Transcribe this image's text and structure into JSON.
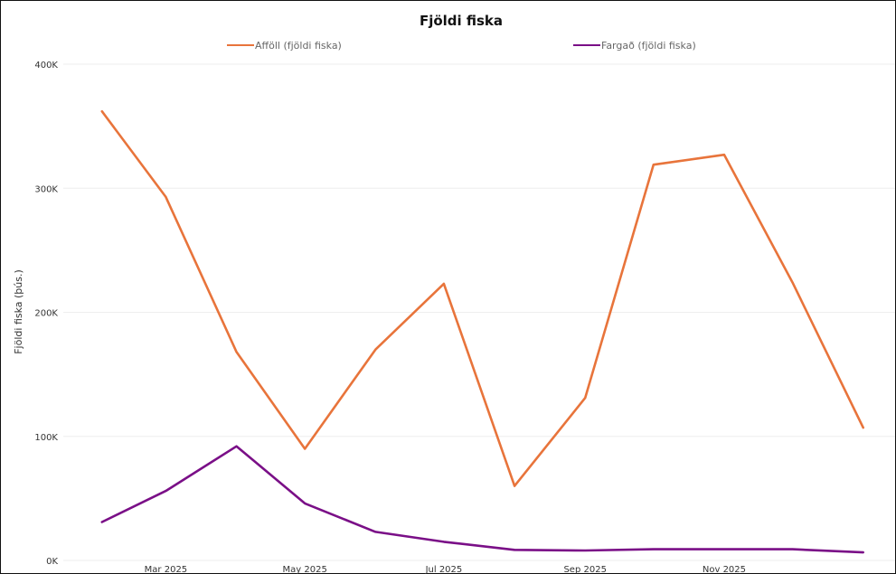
{
  "chart_data": {
    "type": "line",
    "title": "Fjöldi fiska",
    "xlabel": "",
    "ylabel": "Fjöldi fiska (þús.)",
    "x": [
      "2025-02-01",
      "2025-03-01",
      "2025-04-01",
      "2025-05-01",
      "2025-06-01",
      "2025-07-01",
      "2025-08-01",
      "2025-09-01",
      "2025-10-01",
      "2025-11-01",
      "2025-12-01",
      "2026-01-01"
    ],
    "x_ticks": [
      {
        "date": "2025-03-01",
        "label": "Mar 2025"
      },
      {
        "date": "2025-05-01",
        "label": "May 2025"
      },
      {
        "date": "2025-07-01",
        "label": "Jul 2025"
      },
      {
        "date": "2025-09-01",
        "label": "Sep 2025"
      },
      {
        "date": "2025-11-01",
        "label": "Nov 2025"
      }
    ],
    "y_ticks": [
      {
        "value": 0,
        "label": "0K"
      },
      {
        "value": 100000,
        "label": "100K"
      },
      {
        "value": 200000,
        "label": "200K"
      },
      {
        "value": 300000,
        "label": "300K"
      },
      {
        "value": 400000,
        "label": "400K"
      }
    ],
    "ylim": [
      0,
      400000
    ],
    "grid": true,
    "legend_position": "top",
    "series": [
      {
        "name": "Afföll (fjöldi fiska)",
        "color": "#e8743b",
        "values": [
          362000,
          293000,
          168000,
          90000,
          170000,
          223000,
          60000,
          131000,
          319000,
          327000,
          224000,
          107000
        ]
      },
      {
        "name": "Fargað (fjöldi fiska)",
        "color": "#7a0f87",
        "values": [
          31000,
          56000,
          92000,
          46000,
          23000,
          15000,
          8500,
          8000,
          9000,
          9000,
          9000,
          6500
        ]
      }
    ]
  }
}
